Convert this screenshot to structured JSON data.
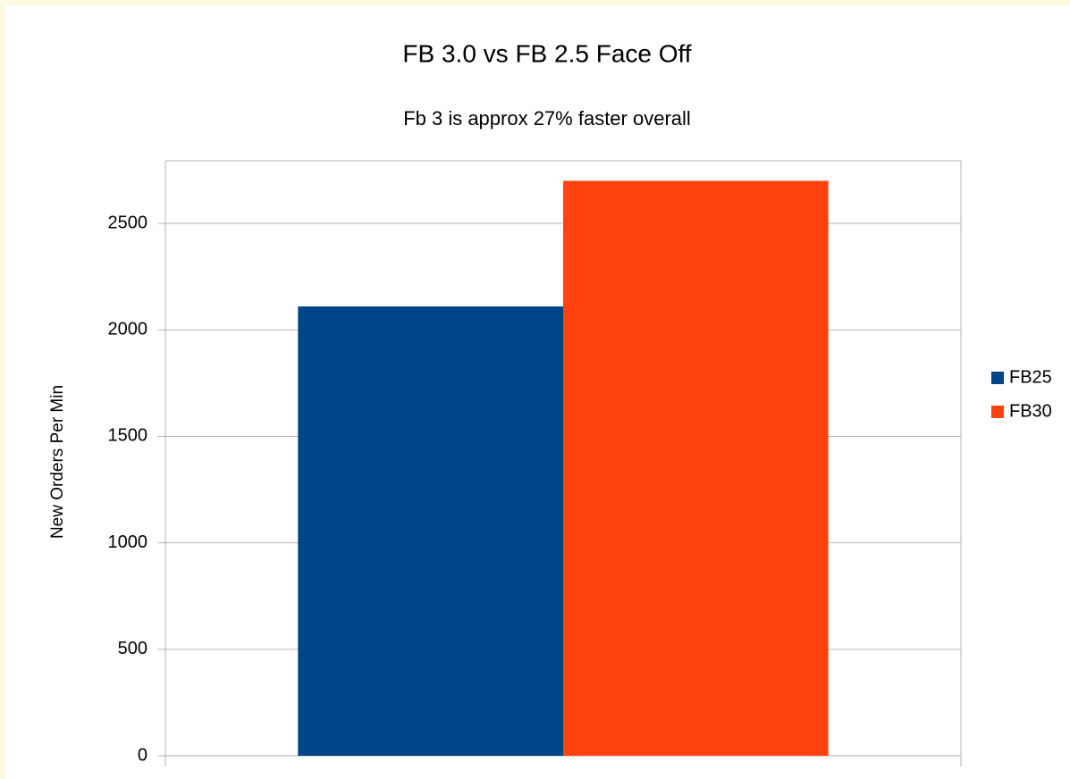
{
  "chart_data": {
    "type": "bar",
    "title": "FB 3.0 vs FB 2.5 Face Off",
    "subtitle": "Fb 3 is approx 27% faster overall",
    "y_label": "New Orders Per Min",
    "categories": [
      null
    ],
    "series": [
      {
        "name": "FB25",
        "color": "#004586",
        "values": [
          2110
        ]
      },
      {
        "name": "FB30",
        "color": "#ff420e",
        "values": [
          2700
        ]
      }
    ],
    "ylim": [
      0,
      2794
    ],
    "yticks": [
      0,
      500,
      1000,
      1500,
      2000,
      2500
    ],
    "grid": true,
    "legend": "right"
  }
}
